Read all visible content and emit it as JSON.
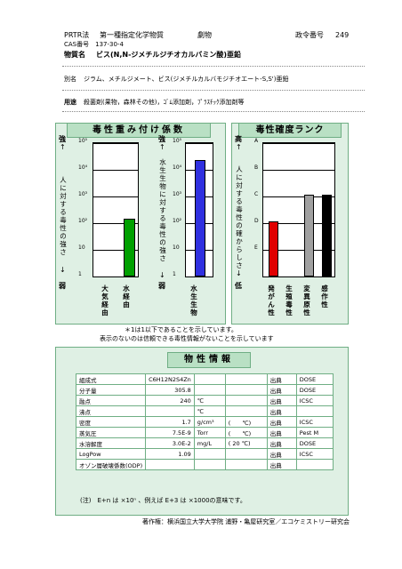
{
  "header": {
    "law": "PRTR法",
    "category": "第一種指定化学物質",
    "type": "劇物",
    "ordinance_label": "政令番号",
    "ordinance_no": "249",
    "cas": "CAS番号　137-30-4",
    "name_label": "物質名",
    "name": "ビス(N,N-ジメチルジチオカルバミン酸)亜鉛",
    "alias_label": "別名",
    "alias": "ジラム、メチルジメート、ビス(ジメチルカルバモジチオエート-S,S')亜鉛",
    "use_label": "用途",
    "use": "殺菌剤(果物，森林その他)，ｺﾞﾑ添加剤，ﾌﾟﾗｽﾁｯｸ添加剤等"
  },
  "weight_panel": {
    "title": "毒性重み付け係数",
    "note1": "＊1は1以下であることを示しています。",
    "note2": "表示のないのは信頼できる毒性情報がないことを示しています",
    "human": {
      "top_label": "強",
      "axis_label": "人に対する毒性の強さ",
      "bottom_label": "弱",
      "ticks": [
        "10⁵",
        "10⁴",
        "10³",
        "10²",
        "10",
        "1"
      ],
      "categories": [
        "大気経由",
        "水経由"
      ]
    },
    "aquatic": {
      "top_label": "強",
      "axis_label": "水生生物に対する毒性の強さ",
      "bottom_label": "弱",
      "ticks": [
        "10⁵",
        "10⁴",
        "10³",
        "10²",
        "10",
        "1"
      ],
      "categories": [
        "水生生物"
      ]
    }
  },
  "rank_panel": {
    "title": "毒性確度ランク",
    "top_label": "高",
    "axis_label": "人に対する毒性の確からしさ",
    "bottom_label": "低",
    "ticks": [
      "A",
      "B",
      "C",
      "D",
      "E"
    ],
    "categories": [
      "発がん性",
      "生殖毒性",
      "変異原性",
      "感作性"
    ]
  },
  "chart_data": [
    {
      "type": "bar",
      "title": "毒性重み付け係数",
      "ylabel": "人に対する毒性の強さ",
      "yscale": "log",
      "ylim": [
        1,
        100000
      ],
      "categories": [
        "大気経由",
        "水経由"
      ],
      "values": [
        null,
        130
      ],
      "colors": [
        "#00a000",
        "#00a000"
      ]
    },
    {
      "type": "bar",
      "ylabel": "水生生物に対する毒性の強さ",
      "yscale": "log",
      "ylim": [
        1,
        100000
      ],
      "categories": [
        "水生生物"
      ],
      "values": [
        20000
      ],
      "colors": [
        "#3030e0"
      ]
    },
    {
      "type": "bar",
      "title": "毒性確度ランク",
      "ylabel": "人に対する毒性の確からしさ",
      "ticks": [
        "A",
        "B",
        "C",
        "D",
        "E"
      ],
      "categories": [
        "発がん性",
        "生殖毒性",
        "変異原性",
        "感作性"
      ],
      "values": [
        "D",
        null,
        "C",
        "C"
      ],
      "colors": [
        "#e00000",
        "#888888",
        "#a0a0a0",
        "#000000"
      ]
    }
  ],
  "props": {
    "title": "物性情報",
    "rows": [
      {
        "label": "組成式",
        "value": "C6H12N2S4Zn",
        "unit": "",
        "paren": "",
        "src_label": "出典",
        "src": "DOSE"
      },
      {
        "label": "分子量",
        "value": "305.8",
        "unit": "",
        "paren": "",
        "src_label": "出典",
        "src": "DOSE"
      },
      {
        "label": "融点",
        "value": "240",
        "unit": "℃",
        "paren": "",
        "src_label": "出典",
        "src": "ICSC"
      },
      {
        "label": "沸点",
        "value": "",
        "unit": "℃",
        "paren": "",
        "src_label": "出典",
        "src": ""
      },
      {
        "label": "密度",
        "value": "1.7",
        "unit": "g/cm³",
        "paren": "(　　℃)",
        "src_label": "出典",
        "src": "ICSC"
      },
      {
        "label": "蒸気圧",
        "value": "7.5E-9",
        "unit": "Torr",
        "paren": "(　　℃)",
        "src_label": "出典",
        "src": "Pest M"
      },
      {
        "label": "水溶解度",
        "value": "3.0E-2",
        "unit": "mg/L",
        "paren": "( 20 ℃)",
        "src_label": "出典",
        "src": "DOSE"
      },
      {
        "label": "LogPow",
        "value": "1.09",
        "unit": "",
        "paren": "",
        "src_label": "出典",
        "src": "ICSC"
      },
      {
        "label": "オゾン層破壊係数(ODP)",
        "value": "",
        "unit": "",
        "paren": "",
        "src_label": "出典",
        "src": ""
      }
    ],
    "footnote": "(注)　E+n は ×10ⁿ 、例えば E+3 は ×1000の意味です。"
  },
  "footer": "著作権：横浜国立大学大学院 浦野・亀屋研究室／エコケミストリー研究会"
}
